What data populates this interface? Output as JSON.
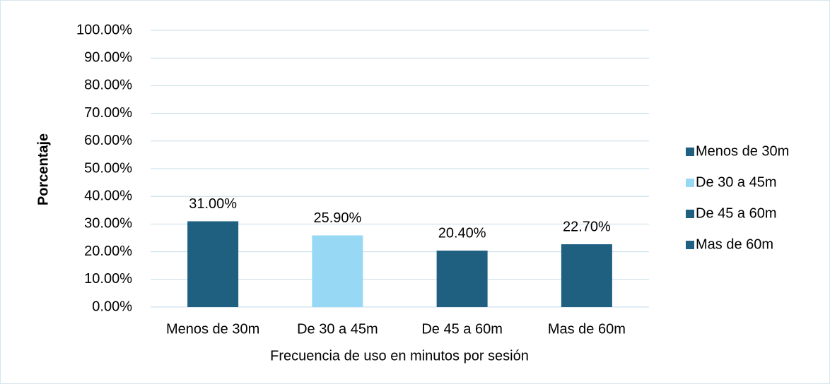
{
  "chart_data": {
    "type": "bar",
    "categories": [
      "Menos de 30m",
      "De 30 a 45m",
      "De 45 a 60m",
      "Mas de 60m"
    ],
    "values": [
      31.0,
      25.9,
      20.4,
      22.7
    ],
    "value_labels": [
      "31.00%",
      "25.90%",
      "20.40%",
      "22.70%"
    ],
    "colors": [
      "#1f5f80",
      "#97d9f5",
      "#1f5f80",
      "#1f5f80"
    ],
    "xlabel": "Frecuencia de uso en minutos por sesión",
    "ylabel": "Porcentaje",
    "ylim": [
      0,
      100
    ],
    "yticks": [
      {
        "value": 0,
        "label": "0.00%"
      },
      {
        "value": 10,
        "label": "10.00%"
      },
      {
        "value": 20,
        "label": "20.00%"
      },
      {
        "value": 30,
        "label": "30.00%"
      },
      {
        "value": 40,
        "label": "40.00%"
      },
      {
        "value": 50,
        "label": "50.00%"
      },
      {
        "value": 60,
        "label": "60.00%"
      },
      {
        "value": 70,
        "label": "70.00%"
      },
      {
        "value": 80,
        "label": "80.00%"
      },
      {
        "value": 90,
        "label": "90.00%"
      },
      {
        "value": 100,
        "label": "100.00%"
      }
    ],
    "grid": true,
    "legend": "right"
  }
}
